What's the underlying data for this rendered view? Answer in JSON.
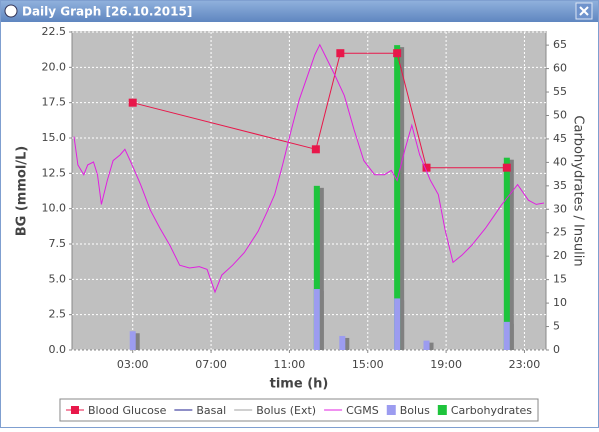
{
  "window_title": "Daily Graph [26.10.2015]",
  "chart_data": {
    "type": "combo",
    "xlabel": "time (h)",
    "ylabel": "BG (mmol/L)",
    "y2label": "Carbohydrates / Insulin",
    "xlim": [
      -0.1,
      24.1
    ],
    "xticks": [
      {
        "value": 3,
        "label": "03:00"
      },
      {
        "value": 7,
        "label": "07:00"
      },
      {
        "value": 11,
        "label": "11:00"
      },
      {
        "value": 15,
        "label": "15:00"
      },
      {
        "value": 19,
        "label": "19:00"
      },
      {
        "value": 23,
        "label": "23:00"
      }
    ],
    "ylim": [
      0,
      22.5
    ],
    "yticks": [
      {
        "value": 0,
        "label": "0.0"
      },
      2.5,
      {
        "value": 5,
        "label": "5.0"
      },
      7.5,
      {
        "value": 10,
        "label": "10.0"
      },
      12.5,
      {
        "value": 15,
        "label": "15.0"
      },
      17.5,
      {
        "value": 20,
        "label": "20.0"
      },
      22.5
    ],
    "y2lim": [
      0,
      67.8
    ],
    "y2ticks": [
      0,
      5,
      10,
      15,
      20,
      25,
      30,
      35,
      40,
      45,
      50,
      55,
      60,
      65
    ],
    "grid": true,
    "legend": "bottom",
    "series": [
      {
        "name": "Blood Glucose",
        "color": "#e8174a",
        "style": "line-points",
        "x": [
          3.0,
          12.35,
          13.6,
          16.5,
          18.0,
          22.1
        ],
        "values": [
          17.5,
          14.2,
          21.0,
          21.0,
          12.9,
          12.9
        ]
      },
      {
        "name": "Basal",
        "color": "#1f1f8f",
        "style": "line"
      },
      {
        "name": "Bolus (Ext)",
        "color": "#a0a0a0",
        "style": "line"
      },
      {
        "name": "CGMS",
        "color": "#e020e0",
        "style": "line",
        "x": [
          0,
          0.2,
          0.5,
          0.7,
          1.0,
          1.2,
          1.4,
          1.7,
          2.0,
          2.35,
          2.6,
          2.9,
          3.4,
          3.9,
          4.4,
          4.9,
          5.4,
          5.9,
          6.4,
          6.8,
          7.2,
          7.55,
          8.1,
          8.7,
          9.4,
          9.9,
          10.25,
          10.65,
          11.1,
          11.5,
          11.95,
          12.3,
          12.55,
          12.8,
          13.3,
          13.8,
          14.3,
          14.8,
          15.35,
          15.85,
          16.2,
          16.5,
          16.9,
          17.25,
          17.65,
          18.2,
          18.6,
          18.95,
          19.35,
          19.8,
          20.3,
          21.0,
          21.5,
          21.85,
          22.25,
          22.65,
          23.2,
          23.6,
          24.0
        ],
        "values": [
          15.1,
          13.1,
          12.4,
          13.1,
          13.3,
          12.4,
          10.3,
          12.0,
          13.4,
          13.8,
          14.2,
          13.3,
          11.7,
          9.9,
          8.6,
          7.4,
          6.0,
          5.8,
          5.9,
          5.7,
          4.1,
          5.3,
          6.0,
          6.9,
          8.4,
          9.9,
          11.0,
          13.1,
          15.6,
          17.7,
          19.5,
          20.9,
          21.6,
          20.9,
          19.5,
          18.0,
          15.6,
          13.4,
          12.4,
          12.4,
          12.7,
          12.0,
          14.2,
          15.9,
          13.8,
          12.0,
          11.0,
          8.5,
          6.2,
          6.7,
          7.4,
          8.6,
          9.6,
          10.3,
          11.0,
          11.7,
          10.6,
          10.3,
          10.4
        ]
      },
      {
        "name": "Bolus",
        "color": "#9c9cf0",
        "style": "bar",
        "axis": "y2",
        "x": [
          3.0,
          12.4,
          13.7,
          16.5,
          18.0,
          22.1
        ],
        "values": [
          4,
          13,
          3,
          11,
          2,
          6
        ]
      },
      {
        "name": "Carbohydrates",
        "color": "#1ec43c",
        "style": "bar",
        "axis": "y2",
        "x": [
          12.4,
          16.5,
          22.1
        ],
        "values": [
          35,
          65,
          41
        ]
      }
    ]
  }
}
